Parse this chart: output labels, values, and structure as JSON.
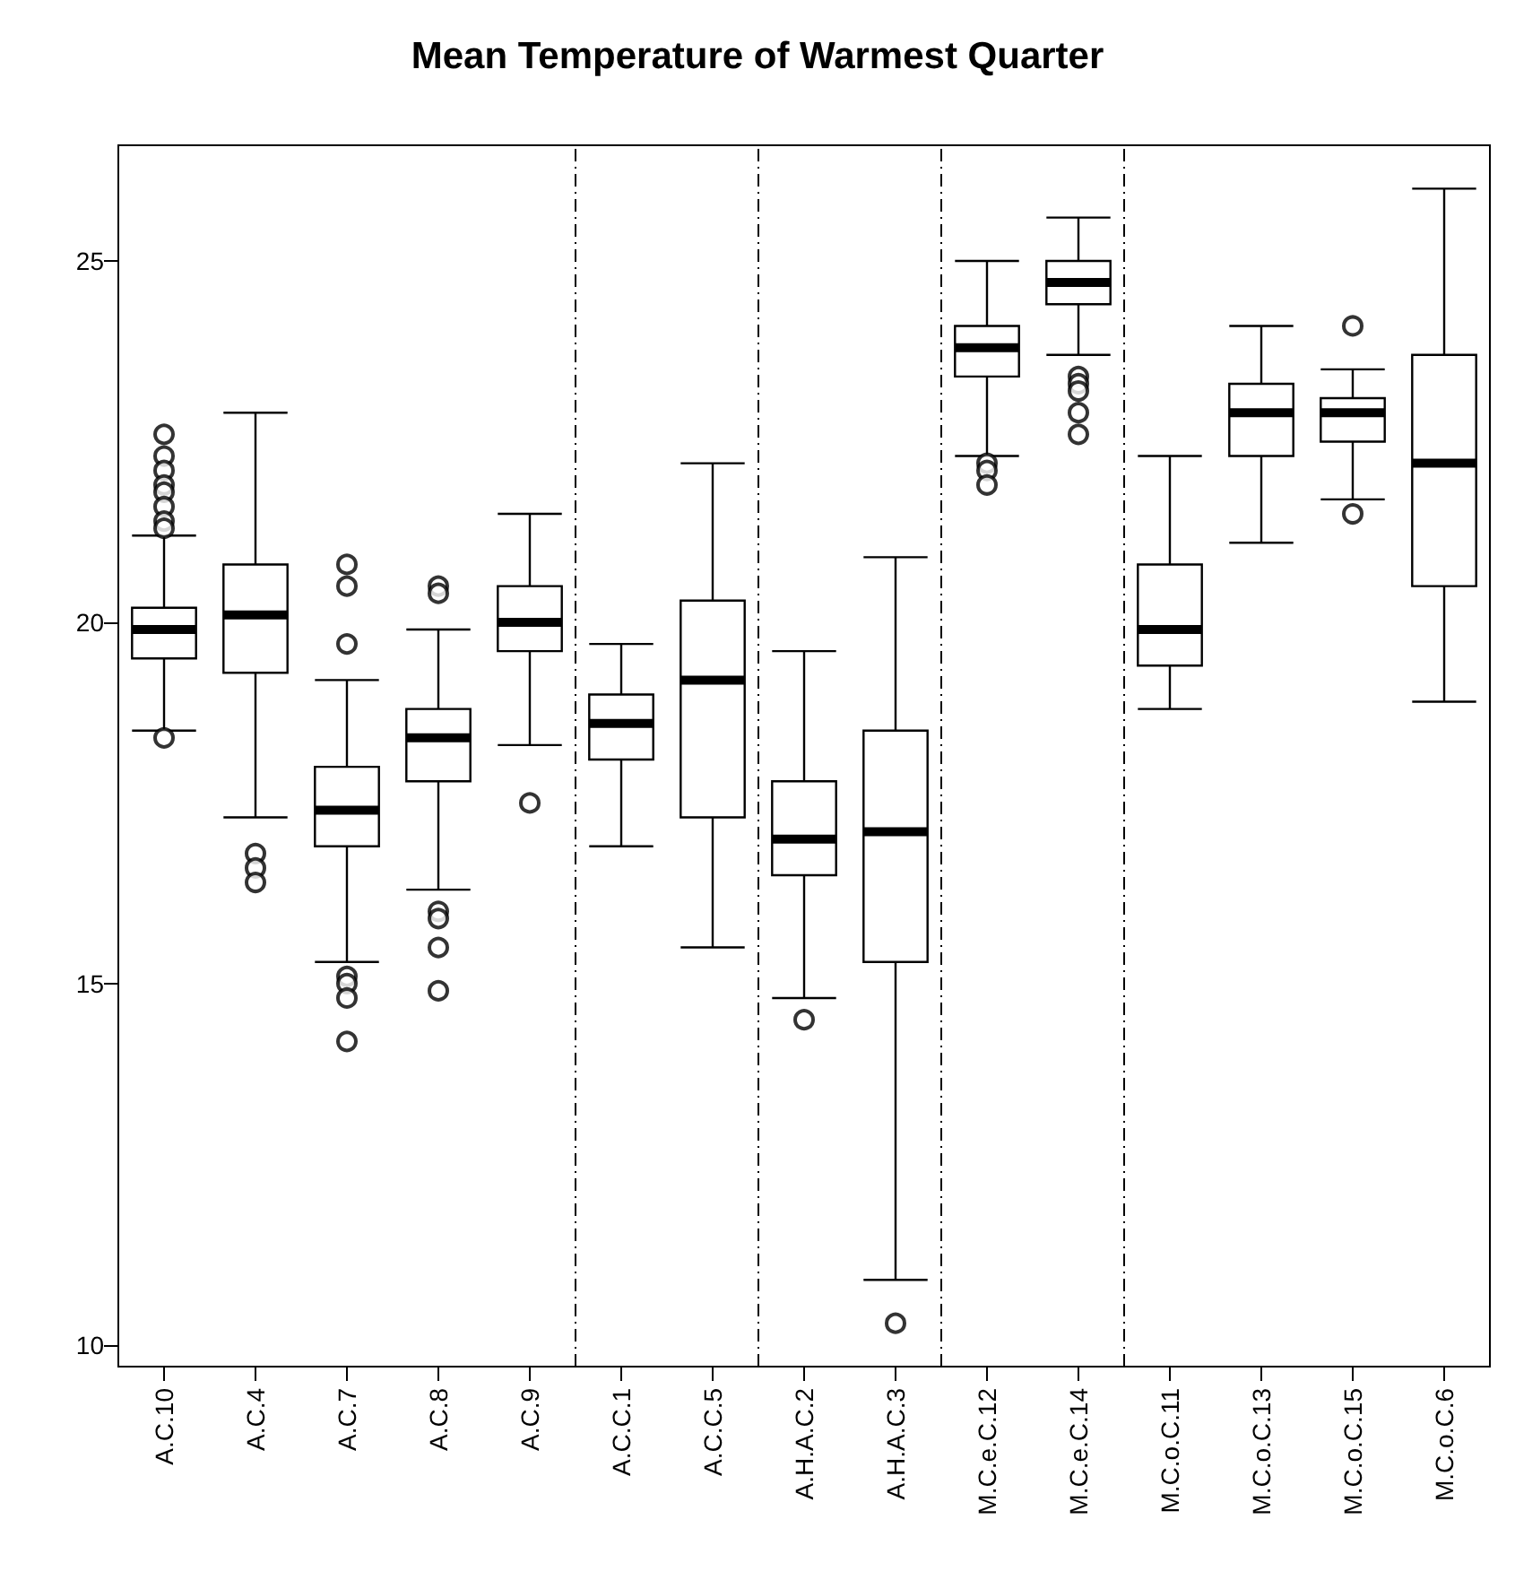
{
  "chart_data": {
    "type": "box",
    "title": "Mean Temperature of Warmest Quarter",
    "categories": [
      "A.C.10",
      "A.C.4",
      "A.C.7",
      "A.C.8",
      "A.C.9",
      "A.C.C.1",
      "A.C.C.5",
      "A.H.A.C.2",
      "A.H.A.C.3",
      "M.C.e.C.12",
      "M.C.e.C.14",
      "M.C.o.C.11",
      "M.C.o.C.13",
      "M.C.o.C.15",
      "M.C.o.C.6"
    ],
    "boxes": [
      {
        "low": 18.5,
        "q1": 19.5,
        "median": 19.9,
        "q3": 20.2,
        "high": 21.2,
        "outliers": [
          22.6,
          22.3,
          22.1,
          21.9,
          21.8,
          21.6,
          21.4,
          21.3,
          18.4
        ]
      },
      {
        "low": 17.3,
        "q1": 19.3,
        "median": 20.1,
        "q3": 20.8,
        "high": 22.9,
        "outliers": [
          16.8,
          16.6,
          16.4
        ]
      },
      {
        "low": 15.3,
        "q1": 16.9,
        "median": 17.4,
        "q3": 18.0,
        "high": 19.2,
        "outliers": [
          20.8,
          20.5,
          19.7,
          15.1,
          15.0,
          14.8,
          14.2
        ]
      },
      {
        "low": 16.3,
        "q1": 17.8,
        "median": 18.4,
        "q3": 18.8,
        "high": 19.9,
        "outliers": [
          20.5,
          20.4,
          16.0,
          15.9,
          15.5,
          14.9
        ]
      },
      {
        "low": 18.3,
        "q1": 19.6,
        "median": 20.0,
        "q3": 20.5,
        "high": 21.5,
        "outliers": [
          17.5
        ]
      },
      {
        "low": 16.9,
        "q1": 18.1,
        "median": 18.6,
        "q3": 19.0,
        "high": 19.7
      },
      {
        "low": 15.5,
        "q1": 17.3,
        "median": 19.2,
        "q3": 20.3,
        "high": 22.2
      },
      {
        "low": 14.8,
        "q1": 16.5,
        "median": 17.0,
        "q3": 17.8,
        "high": 19.6,
        "outliers": [
          14.5
        ]
      },
      {
        "low": 10.9,
        "q1": 15.3,
        "median": 17.1,
        "q3": 18.5,
        "high": 20.9,
        "outliers": [
          10.3
        ]
      },
      {
        "low": 22.3,
        "q1": 23.4,
        "median": 23.8,
        "q3": 24.1,
        "high": 25.0,
        "outliers": [
          22.2,
          22.1,
          21.9
        ]
      },
      {
        "low": 23.7,
        "q1": 24.4,
        "median": 24.7,
        "q3": 25.0,
        "high": 25.6,
        "outliers": [
          23.4,
          23.3,
          23.2,
          22.9,
          22.6
        ]
      },
      {
        "low": 18.8,
        "q1": 19.4,
        "median": 19.9,
        "q3": 20.8,
        "high": 22.3
      },
      {
        "low": 21.1,
        "q1": 22.3,
        "median": 22.9,
        "q3": 23.3,
        "high": 24.1
      },
      {
        "low": 21.7,
        "q1": 22.5,
        "median": 22.9,
        "q3": 23.1,
        "high": 23.5,
        "outliers": [
          24.1,
          21.5
        ]
      },
      {
        "low": 18.9,
        "q1": 20.5,
        "median": 22.2,
        "q3": 23.7,
        "high": 26.0
      }
    ],
    "ylim": [
      9.7,
      26.6
    ],
    "yticks": [
      10,
      15,
      20,
      25
    ],
    "grid": false,
    "marker": "circle"
  }
}
